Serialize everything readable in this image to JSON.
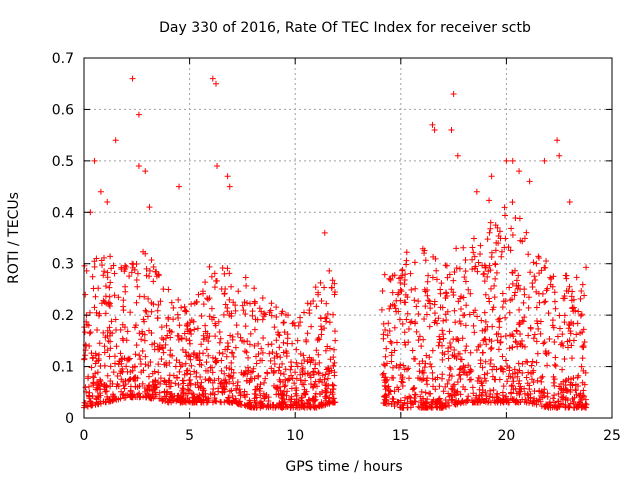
{
  "chart_data": {
    "type": "scatter",
    "title": "Day 330 of 2016, Rate Of TEC Index for receiver sctb",
    "xlabel": "GPS time / hours",
    "ylabel": "ROTI / TECUs",
    "xlim": [
      0,
      25
    ],
    "ylim": [
      0,
      0.7
    ],
    "x_ticks": [
      0,
      5,
      10,
      15,
      20,
      25
    ],
    "y_ticks": [
      0,
      0.1,
      0.2,
      0.3,
      0.4,
      0.5,
      0.6,
      0.7
    ],
    "grid": true,
    "marker": "+",
    "color": "#ff0000",
    "data_gap_hours": [
      11.9,
      14.1
    ],
    "envelope": {
      "description": "typical ROTI range vs hour (dense point cloud)",
      "hours": [
        0,
        1,
        2,
        3,
        4,
        5,
        6,
        7,
        8,
        9,
        10,
        11,
        11.8,
        14.1,
        15,
        16,
        17,
        18,
        19,
        20,
        21,
        22,
        23,
        23.8
      ],
      "low": [
        0.02,
        0.03,
        0.04,
        0.04,
        0.03,
        0.03,
        0.03,
        0.03,
        0.02,
        0.02,
        0.02,
        0.02,
        0.03,
        0.03,
        0.02,
        0.02,
        0.02,
        0.03,
        0.03,
        0.03,
        0.03,
        0.02,
        0.02,
        0.02
      ],
      "high": [
        0.3,
        0.32,
        0.3,
        0.33,
        0.25,
        0.22,
        0.3,
        0.3,
        0.26,
        0.22,
        0.2,
        0.26,
        0.3,
        0.3,
        0.32,
        0.34,
        0.3,
        0.36,
        0.42,
        0.44,
        0.38,
        0.3,
        0.28,
        0.3
      ]
    },
    "outliers": [
      {
        "x": 0.5,
        "y": 0.5
      },
      {
        "x": 0.8,
        "y": 0.44
      },
      {
        "x": 1.5,
        "y": 0.54
      },
      {
        "x": 2.3,
        "y": 0.66
      },
      {
        "x": 2.6,
        "y": 0.59
      },
      {
        "x": 2.6,
        "y": 0.49
      },
      {
        "x": 2.9,
        "y": 0.48
      },
      {
        "x": 3.1,
        "y": 0.41
      },
      {
        "x": 4.5,
        "y": 0.45
      },
      {
        "x": 6.1,
        "y": 0.66
      },
      {
        "x": 6.25,
        "y": 0.65
      },
      {
        "x": 6.3,
        "y": 0.49
      },
      {
        "x": 6.8,
        "y": 0.47
      },
      {
        "x": 6.9,
        "y": 0.45
      },
      {
        "x": 11.4,
        "y": 0.36
      },
      {
        "x": 16.5,
        "y": 0.57
      },
      {
        "x": 16.6,
        "y": 0.56
      },
      {
        "x": 17.5,
        "y": 0.63
      },
      {
        "x": 17.4,
        "y": 0.56
      },
      {
        "x": 17.7,
        "y": 0.51
      },
      {
        "x": 19.3,
        "y": 0.47
      },
      {
        "x": 20.0,
        "y": 0.5
      },
      {
        "x": 20.3,
        "y": 0.5
      },
      {
        "x": 20.6,
        "y": 0.48
      },
      {
        "x": 21.1,
        "y": 0.46
      },
      {
        "x": 21.8,
        "y": 0.5
      },
      {
        "x": 22.4,
        "y": 0.54
      },
      {
        "x": 22.5,
        "y": 0.51
      },
      {
        "x": 23.0,
        "y": 0.42
      },
      {
        "x": 18.6,
        "y": 0.44
      },
      {
        "x": 1.1,
        "y": 0.42
      },
      {
        "x": 0.3,
        "y": 0.4
      }
    ]
  }
}
